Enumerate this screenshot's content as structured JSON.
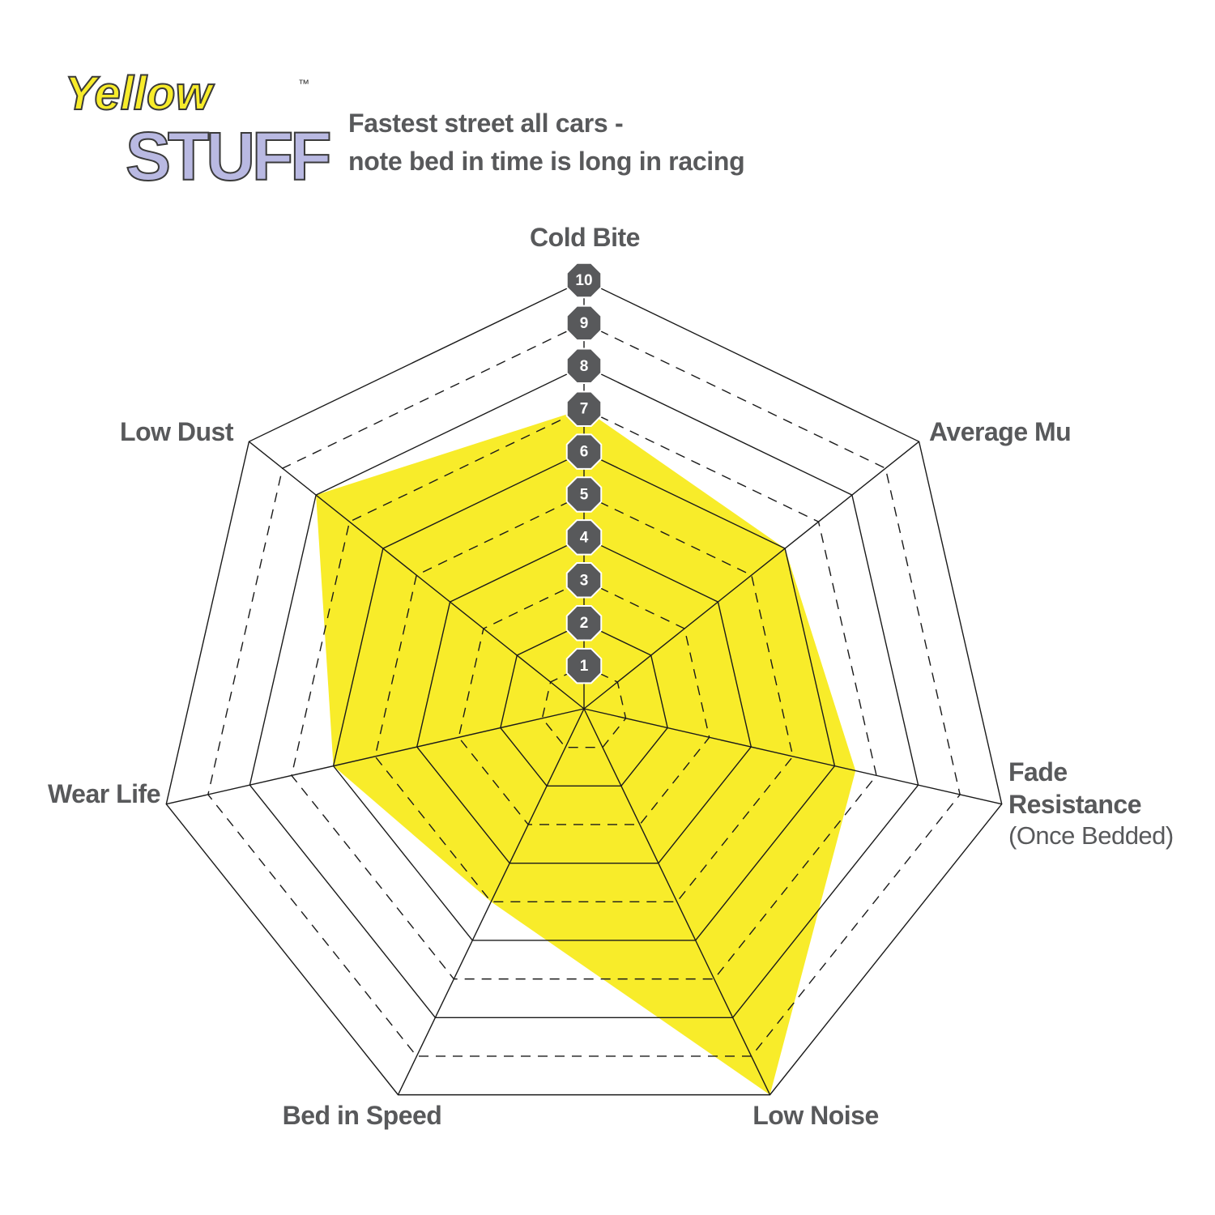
{
  "logo": {
    "line1": "Yellow",
    "line2": "STUFF",
    "mark": "™"
  },
  "chart_data": {
    "type": "radar",
    "title": [
      "Fastest street all cars -",
      "note bed in time is long in racing"
    ],
    "categories": [
      "Cold Bite",
      "Average Mu",
      "Fade Resistance",
      "Low Noise",
      "Bed in Speed",
      "Wear Life",
      "Low Dust"
    ],
    "annotation": "(Once Bedded)",
    "values": [
      7,
      6,
      6.5,
      10,
      5,
      6,
      8
    ],
    "color": "#f8ec2a",
    "rlim": [
      0,
      10
    ],
    "rticks": [
      1,
      2,
      3,
      4,
      5,
      6,
      7,
      8,
      9,
      10
    ]
  }
}
